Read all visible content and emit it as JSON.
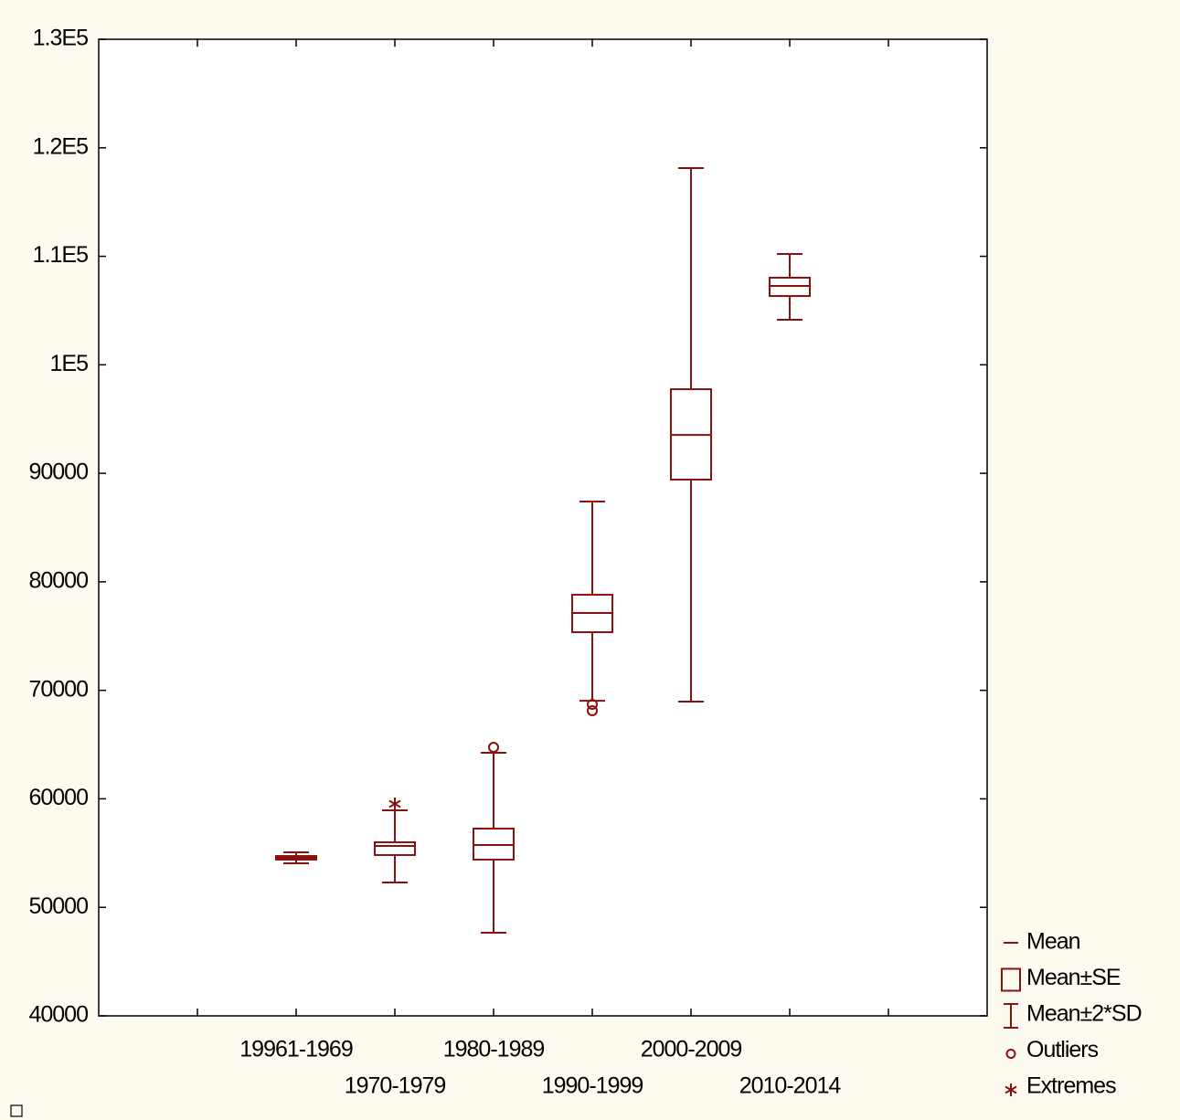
{
  "chart_data": {
    "type": "box",
    "categories": [
      null,
      "19961-1969",
      "1970-1979",
      "1980-1989",
      "1990-1999",
      "2000-2009",
      "2010-2014",
      null
    ],
    "mean": [
      null,
      54565,
      55660,
      55740,
      77130,
      93540,
      107270,
      null
    ],
    "se_low": [
      null,
      54400,
      54820,
      54400,
      75360,
      89420,
      106340,
      null
    ],
    "se_high": [
      null,
      54730,
      56000,
      57260,
      78810,
      97750,
      108030,
      null
    ],
    "sd_low": [
      null,
      54060,
      52290,
      47660,
      69040,
      68960,
      104150,
      null
    ],
    "sd_high": [
      null,
      55070,
      58940,
      64250,
      87400,
      118130,
      110210,
      null
    ],
    "outliers": [
      [],
      [],
      [],
      [
        64750
      ],
      [
        68710,
        68120
      ],
      [],
      [],
      []
    ],
    "extremes": [
      [],
      [],
      [
        59530
      ],
      [],
      [],
      [],
      [],
      []
    ],
    "ylim": [
      40000,
      130000
    ],
    "yticks": [
      40000,
      50000,
      60000,
      70000,
      80000,
      90000,
      {
        "value": 100000,
        "label": "1E5"
      },
      {
        "value": 110000,
        "label": "1.1E5"
      },
      {
        "value": 120000,
        "label": "1.2E5"
      },
      {
        "value": 130000,
        "label": "1.3E5"
      }
    ],
    "color": "#8b1010",
    "grid": false,
    "legend": [
      "Mean",
      "Mean±SE",
      "Mean±2*SD",
      "Outliers",
      "Extremes"
    ],
    "legend_position": "lower right"
  }
}
